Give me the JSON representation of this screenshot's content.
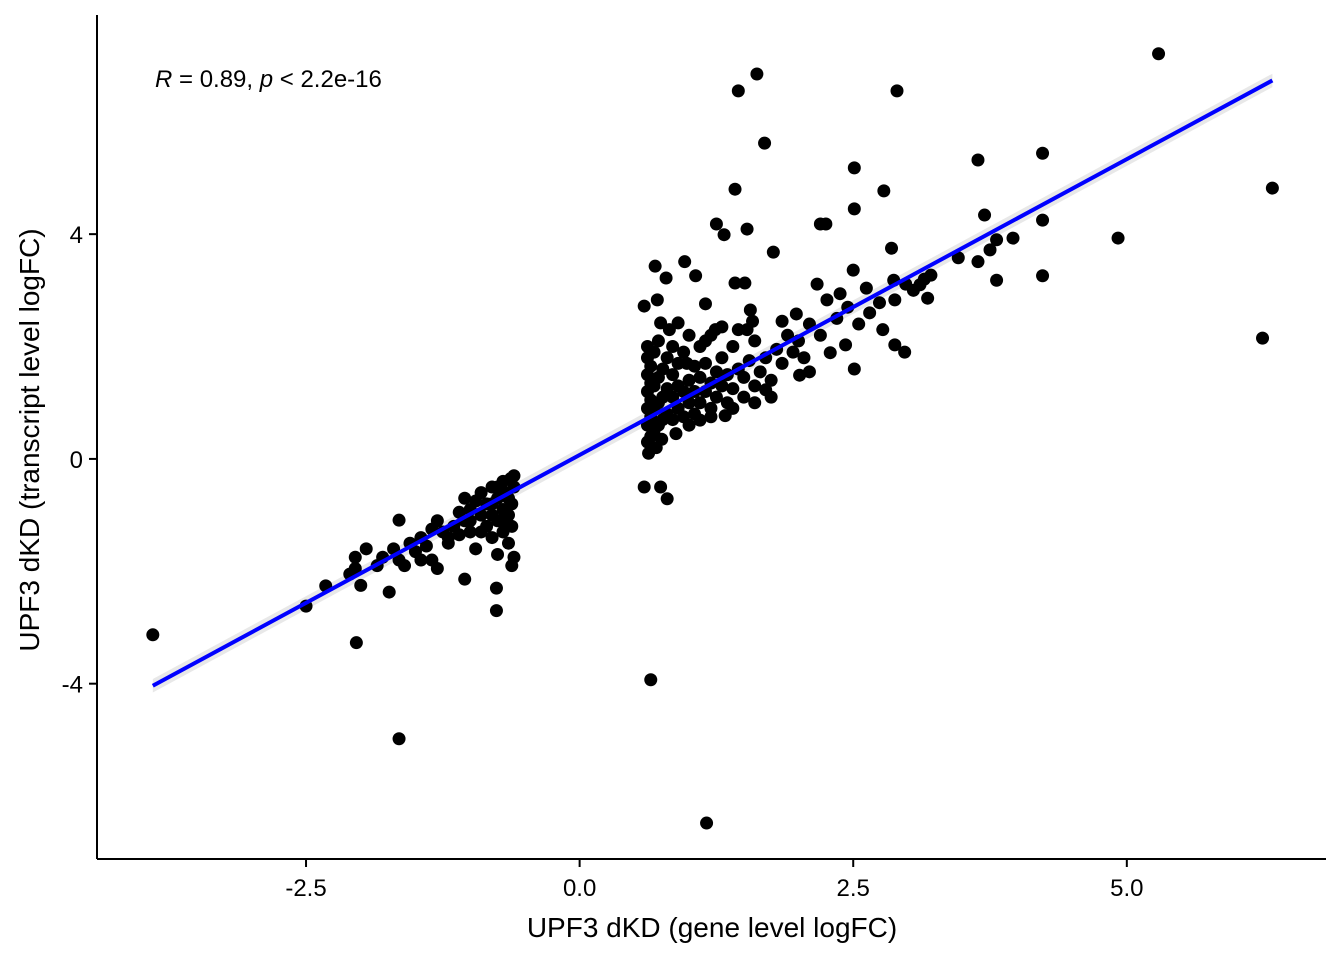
{
  "chart_data": {
    "type": "scatter",
    "title": "",
    "xlabel": "UPF3 dKD (gene level logFC)",
    "ylabel": "UPF3 dKD (transcript level logFC)",
    "xlim": [
      -4.41,
      6.82
    ],
    "ylim": [
      -7.12,
      7.9
    ],
    "grid": false,
    "x_ticks": [
      -2.5,
      0.0,
      2.5,
      5.0
    ],
    "x_tick_labels": [
      "-2.5",
      "0.0",
      "2.5",
      "5.0"
    ],
    "y_ticks": [
      -4,
      0,
      4
    ],
    "y_tick_labels": [
      "-4",
      "0",
      "4"
    ],
    "point_color": "#000000",
    "fit_line": {
      "color": "#0000FF",
      "band_color": "#D9D9D9",
      "intercept": 0.07,
      "slope": 1.053,
      "x_range": [
        -3.9,
        6.33
      ]
    },
    "annotation": {
      "r_symbol": "R",
      "r_text": " = 0.89, ",
      "p_symbol": "p",
      "p_text": " < 2.2e-16"
    },
    "points": [
      [
        -3.9,
        -3.13
      ],
      [
        -2.5,
        -2.62
      ],
      [
        -2.32,
        -2.26
      ],
      [
        -2.04,
        -3.27
      ],
      [
        -1.74,
        -2.37
      ],
      [
        -1.65,
        -4.98
      ],
      [
        -1.65,
        -1.09
      ],
      [
        -1.05,
        -2.14
      ],
      [
        -0.76,
        -2.7
      ],
      [
        -0.76,
        -2.3
      ],
      [
        0.59,
        -0.5
      ],
      [
        0.65,
        -3.93
      ],
      [
        0.74,
        -0.5
      ],
      [
        0.8,
        -0.71
      ],
      [
        1.16,
        -6.48
      ],
      [
        1.45,
        6.55
      ],
      [
        1.62,
        6.85
      ],
      [
        1.69,
        5.62
      ],
      [
        2.9,
        6.55
      ],
      [
        5.29,
        7.21
      ],
      [
        6.33,
        4.82
      ],
      [
        6.24,
        2.15
      ],
      [
        4.92,
        3.93
      ],
      [
        4.23,
        5.44
      ],
      [
        4.23,
        3.26
      ],
      [
        4.23,
        4.25
      ],
      [
        3.64,
        5.32
      ],
      [
        2.51,
        5.18
      ],
      [
        2.51,
        4.45
      ],
      [
        2.78,
        4.77
      ],
      [
        1.42,
        4.8
      ],
      [
        1.25,
        4.18
      ],
      [
        1.32,
        3.99
      ],
      [
        1.53,
        4.09
      ],
      [
        1.77,
        3.68
      ],
      [
        2.2,
        4.18
      ],
      [
        2.25,
        4.18
      ],
      [
        2.85,
        3.75
      ],
      [
        2.5,
        3.36
      ],
      [
        2.62,
        3.04
      ],
      [
        2.87,
        3.18
      ],
      [
        3.81,
        3.18
      ],
      [
        3.81,
        3.9
      ],
      [
        3.96,
        3.93
      ],
      [
        3.7,
        4.34
      ],
      [
        3.46,
        3.58
      ],
      [
        3.64,
        3.51
      ],
      [
        3.75,
        3.72
      ],
      [
        3.18,
        2.86
      ],
      [
        2.97,
        1.9
      ],
      [
        2.51,
        1.6
      ],
      [
        0.69,
        3.43
      ],
      [
        0.96,
        3.51
      ],
      [
        1.06,
        3.26
      ],
      [
        0.79,
        3.22
      ],
      [
        1.42,
        3.13
      ],
      [
        1.51,
        3.13
      ],
      [
        0.59,
        2.72
      ],
      [
        0.71,
        2.83
      ],
      [
        1.15,
        2.76
      ],
      [
        1.56,
        2.65
      ],
      [
        0.9,
        2.42
      ],
      [
        0.74,
        2.42
      ],
      [
        1.24,
        2.3
      ],
      [
        1.53,
        2.3
      ],
      [
        1.98,
        2.58
      ],
      [
        2.17,
        3.11
      ],
      [
        2.26,
        2.83
      ],
      [
        2.38,
        2.94
      ],
      [
        2.74,
        2.78
      ],
      [
        2.88,
        2.83
      ],
      [
        2.98,
        3.11
      ],
      [
        3.11,
        3.1
      ],
      [
        3.21,
        3.27
      ],
      [
        2.77,
        2.3
      ],
      [
        2.88,
        2.03
      ],
      [
        2.29,
        1.89
      ],
      [
        2.43,
        2.03
      ],
      [
        2.01,
        1.49
      ],
      [
        1.33,
        0.77
      ],
      [
        1.1,
        0.69
      ],
      [
        1.7,
        1.23
      ],
      [
        3.05,
        3.0
      ],
      [
        3.15,
        3.2
      ],
      [
        2.65,
        2.6
      ],
      [
        2.55,
        2.4
      ],
      [
        2.45,
        2.7
      ],
      [
        2.35,
        2.5
      ],
      [
        2.2,
        2.2
      ],
      [
        2.1,
        2.4
      ],
      [
        -2.05,
        -1.75
      ],
      [
        -2.05,
        -1.95
      ],
      [
        -2.1,
        -2.05
      ],
      [
        -1.95,
        -1.6
      ],
      [
        -1.85,
        -1.9
      ],
      [
        -1.8,
        -1.75
      ],
      [
        -1.7,
        -1.6
      ],
      [
        -1.65,
        -1.8
      ],
      [
        -1.6,
        -1.9
      ],
      [
        -1.55,
        -1.5
      ],
      [
        -1.5,
        -1.65
      ],
      [
        -1.45,
        -1.4
      ],
      [
        -1.4,
        -1.55
      ],
      [
        -1.35,
        -1.25
      ],
      [
        -1.35,
        -1.8
      ],
      [
        -1.3,
        -1.95
      ],
      [
        -1.3,
        -1.1
      ],
      [
        -1.25,
        -1.3
      ],
      [
        -1.2,
        -1.5
      ],
      [
        -1.15,
        -1.2
      ],
      [
        -1.1,
        -0.95
      ],
      [
        -1.1,
        -1.35
      ],
      [
        -1.05,
        -1.1
      ],
      [
        -1.05,
        -0.7
      ],
      [
        -1.0,
        -0.9
      ],
      [
        -1.0,
        -1.3
      ],
      [
        -0.95,
        -0.75
      ],
      [
        -0.95,
        -1.6
      ],
      [
        -0.9,
        -1.0
      ],
      [
        -0.9,
        -0.6
      ],
      [
        -0.85,
        -1.2
      ],
      [
        -0.85,
        -0.8
      ],
      [
        -0.8,
        -0.5
      ],
      [
        -0.8,
        -1.4
      ],
      [
        -0.8,
        -1.0
      ],
      [
        -0.75,
        -0.7
      ],
      [
        -0.75,
        -1.1
      ],
      [
        -0.75,
        -1.7
      ],
      [
        -0.7,
        -0.4
      ],
      [
        -0.7,
        -0.9
      ],
      [
        -0.7,
        -1.3
      ],
      [
        -0.68,
        -0.6
      ],
      [
        -0.65,
        -1.0
      ],
      [
        -0.65,
        -1.5
      ],
      [
        -0.63,
        -0.35
      ],
      [
        -0.62,
        -0.8
      ],
      [
        -0.62,
        -1.2
      ],
      [
        -0.6,
        -0.5
      ],
      [
        -0.6,
        -1.75
      ],
      [
        -0.6,
        -0.3
      ],
      [
        -0.62,
        -1.9
      ],
      [
        -1.2,
        -1.4
      ],
      [
        -1.45,
        -1.8
      ],
      [
        -2.0,
        -2.25
      ],
      [
        -0.9,
        -1.3
      ],
      [
        -0.8,
        -0.8
      ],
      [
        -0.7,
        -1.1
      ],
      [
        -1.0,
        -1.1
      ],
      [
        -0.65,
        -0.7
      ],
      [
        -0.75,
        -0.5
      ],
      [
        0.62,
        0.3
      ],
      [
        0.62,
        0.6
      ],
      [
        0.62,
        0.9
      ],
      [
        0.62,
        1.2
      ],
      [
        0.62,
        1.5
      ],
      [
        0.62,
        1.8
      ],
      [
        0.62,
        2.0
      ],
      [
        0.65,
        0.4
      ],
      [
        0.65,
        0.75
      ],
      [
        0.65,
        1.05
      ],
      [
        0.65,
        1.35
      ],
      [
        0.65,
        1.65
      ],
      [
        0.68,
        0.5
      ],
      [
        0.68,
        0.9
      ],
      [
        0.68,
        1.3
      ],
      [
        0.68,
        1.9
      ],
      [
        0.72,
        0.6
      ],
      [
        0.72,
        1.0
      ],
      [
        0.72,
        1.45
      ],
      [
        0.72,
        2.1
      ],
      [
        0.76,
        0.7
      ],
      [
        0.76,
        1.1
      ],
      [
        0.76,
        1.6
      ],
      [
        0.8,
        0.8
      ],
      [
        0.8,
        1.25
      ],
      [
        0.8,
        1.8
      ],
      [
        0.85,
        0.7
      ],
      [
        0.85,
        1.1
      ],
      [
        0.85,
        1.5
      ],
      [
        0.85,
        2.0
      ],
      [
        0.9,
        0.9
      ],
      [
        0.9,
        1.3
      ],
      [
        0.9,
        1.7
      ],
      [
        0.95,
        0.75
      ],
      [
        0.95,
        1.2
      ],
      [
        0.95,
        1.9
      ],
      [
        1.0,
        1.0
      ],
      [
        1.0,
        1.4
      ],
      [
        1.0,
        2.2
      ],
      [
        1.05,
        0.8
      ],
      [
        1.05,
        1.2
      ],
      [
        1.05,
        1.65
      ],
      [
        1.1,
        1.0
      ],
      [
        1.1,
        1.45
      ],
      [
        1.1,
        2.0
      ],
      [
        1.15,
        1.2
      ],
      [
        1.15,
        1.7
      ],
      [
        1.2,
        0.9
      ],
      [
        1.2,
        1.35
      ],
      [
        1.2,
        2.2
      ],
      [
        1.25,
        1.1
      ],
      [
        1.25,
        1.55
      ],
      [
        1.3,
        1.3
      ],
      [
        1.3,
        1.8
      ],
      [
        1.35,
        1.0
      ],
      [
        1.35,
        1.5
      ],
      [
        1.4,
        1.25
      ],
      [
        1.4,
        2.0
      ],
      [
        1.45,
        1.6
      ],
      [
        1.5,
        1.1
      ],
      [
        1.5,
        1.45
      ],
      [
        1.55,
        1.75
      ],
      [
        1.6,
        1.3
      ],
      [
        1.6,
        2.1
      ],
      [
        1.65,
        1.55
      ],
      [
        1.7,
        1.8
      ],
      [
        1.75,
        1.4
      ],
      [
        1.8,
        1.95
      ],
      [
        1.85,
        1.7
      ],
      [
        1.9,
        2.2
      ],
      [
        1.95,
        1.9
      ],
      [
        2.0,
        2.1
      ],
      [
        2.05,
        1.8
      ],
      [
        1.45,
        2.3
      ],
      [
        1.3,
        2.35
      ],
      [
        1.15,
        2.1
      ],
      [
        0.98,
        1.7
      ],
      [
        0.88,
        0.45
      ],
      [
        0.7,
        0.2
      ],
      [
        0.63,
        0.1
      ],
      [
        1.2,
        0.75
      ],
      [
        1.4,
        0.9
      ],
      [
        1.6,
        1.0
      ],
      [
        1.75,
        1.1
      ],
      [
        0.75,
        0.35
      ],
      [
        1.0,
        0.6
      ],
      [
        0.82,
        2.3
      ],
      [
        1.58,
        2.45
      ],
      [
        1.85,
        2.45
      ],
      [
        2.1,
        1.55
      ]
    ]
  }
}
